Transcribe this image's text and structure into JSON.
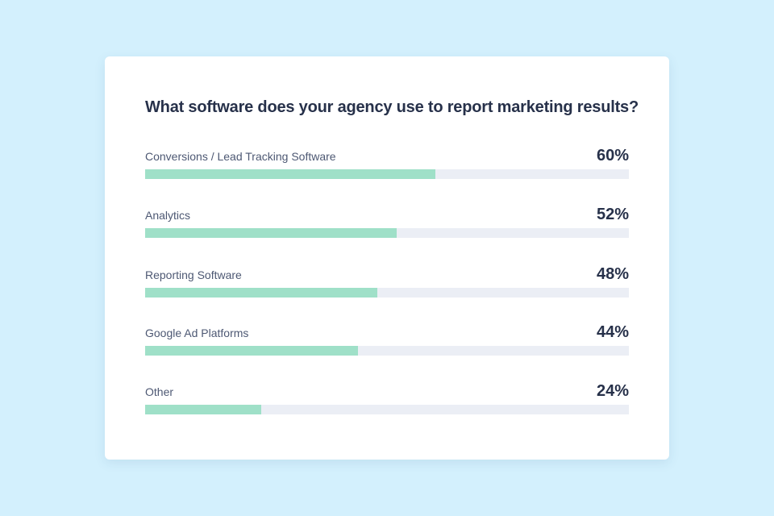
{
  "colors": {
    "background": "#d3f0fd",
    "card": "#ffffff",
    "bar_fill": "#9fe0c8",
    "bar_track": "#ebeef5",
    "title_text": "#27314a",
    "label_text": "#4d5873"
  },
  "chart_data": {
    "type": "bar",
    "orientation": "horizontal",
    "title": "What software does your agency use to report marketing results?",
    "categories": [
      "Conversions / Lead Tracking Software",
      "Analytics",
      "Reporting Software",
      "Google Ad Platforms",
      "Other"
    ],
    "values": [
      60,
      52,
      48,
      44,
      24
    ],
    "value_labels": [
      "60%",
      "52%",
      "48%",
      "44%",
      "24%"
    ],
    "xlim": [
      0,
      100
    ],
    "unit": "%",
    "grid": false,
    "legend": "none"
  }
}
